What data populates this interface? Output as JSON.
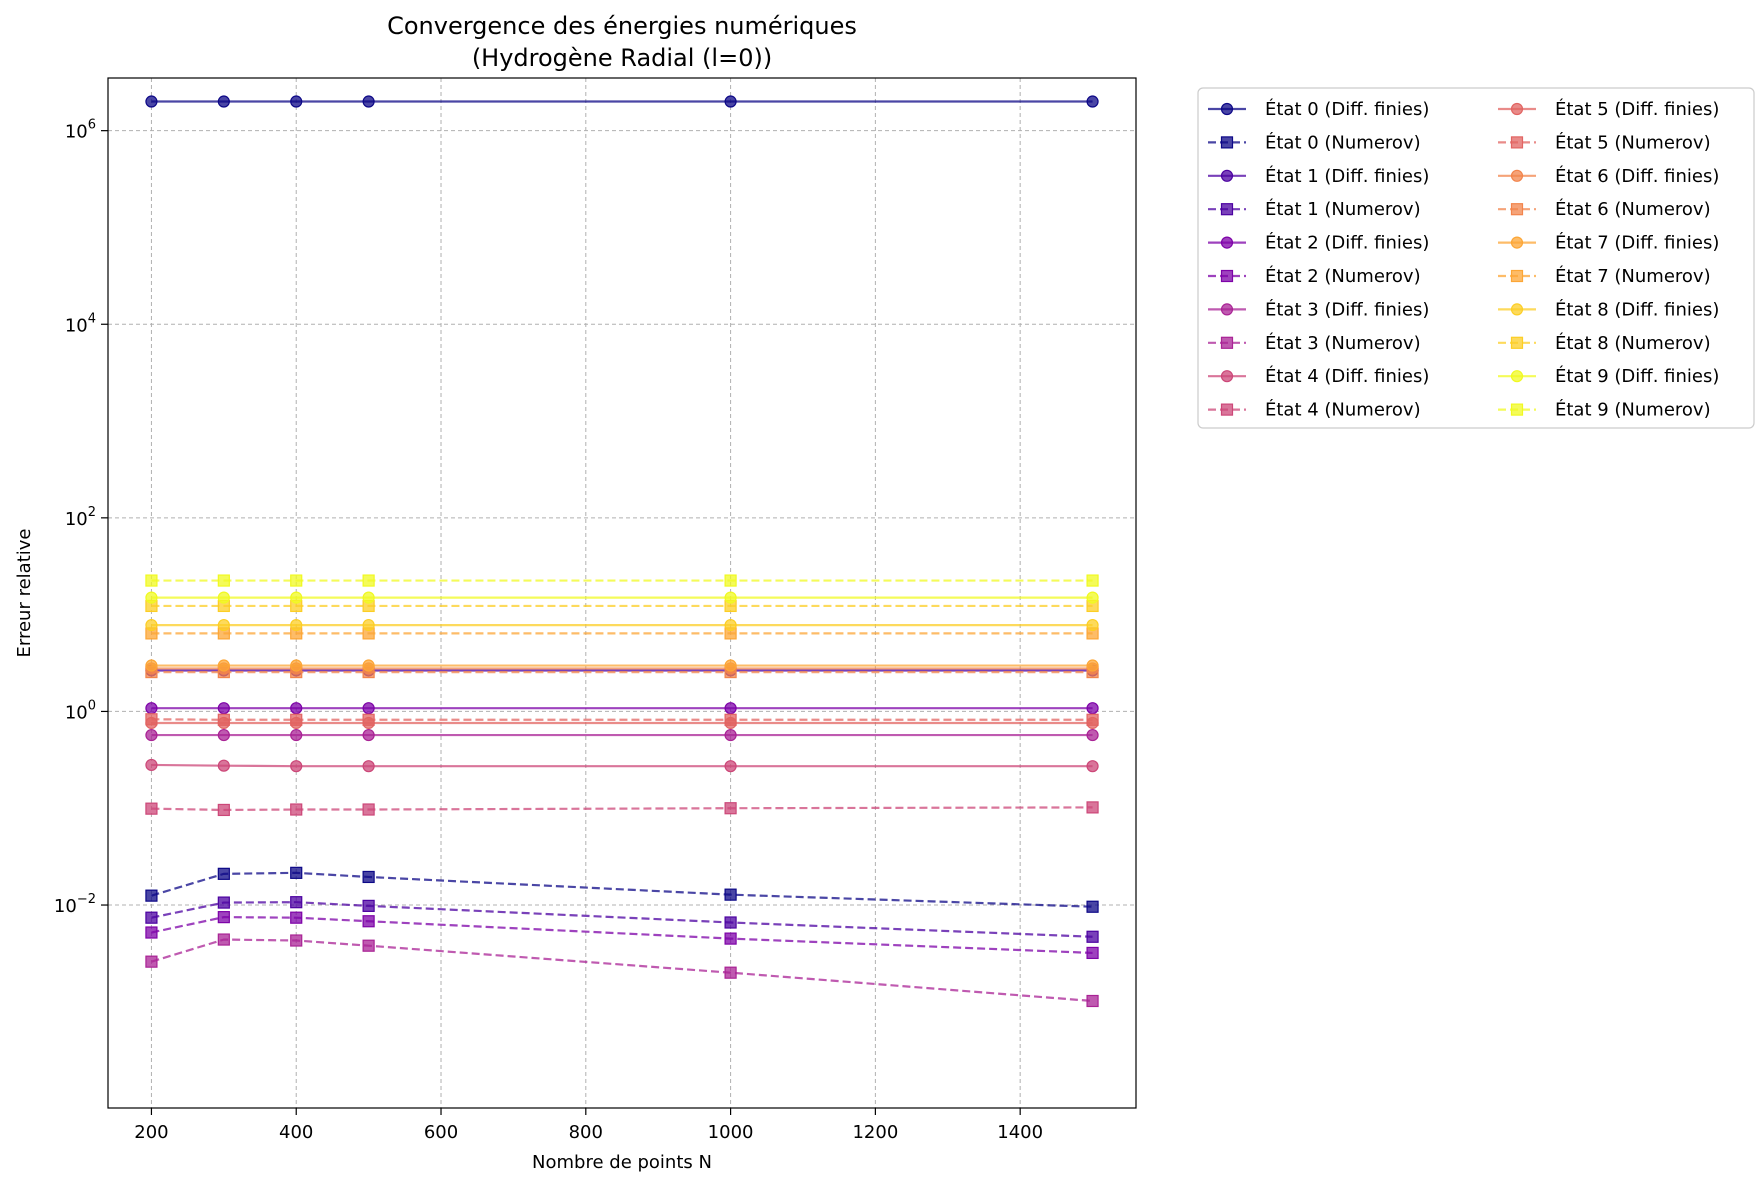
{
  "chart_data": {
    "type": "line",
    "title": "Convergence des énergies numériques",
    "subtitle": "(Hydrogène Radial (l=0))",
    "xlabel": "Nombre de points N",
    "ylabel": "Erreur relative",
    "x": [
      200,
      300,
      400,
      500,
      1000,
      1500
    ],
    "xlim": [
      140,
      1560
    ],
    "ylim": [
      8e-05,
      3500000
    ],
    "yscale": "log",
    "x_ticks": [
      200,
      400,
      600,
      800,
      1000,
      1200,
      1400
    ],
    "y_ticks": [
      {
        "value": 0.01,
        "base": "10",
        "exp": "−2"
      },
      {
        "value": 1,
        "base": "10",
        "exp": "0"
      },
      {
        "value": 100,
        "base": "10",
        "exp": "2"
      },
      {
        "value": 10000,
        "base": "10",
        "exp": "4"
      },
      {
        "value": 1000000,
        "base": "10",
        "exp": "6"
      }
    ],
    "grid": true,
    "legend_position": "outside-right",
    "series": [
      {
        "name": "État 0 (Diff. finies)",
        "color": "#0d0887",
        "style": "solid",
        "marker": "circle",
        "values": [
          2000000,
          2000000,
          2000000,
          2000000,
          2000000,
          2000000
        ]
      },
      {
        "name": "État 0 (Numerov)",
        "color": "#0d0887",
        "style": "dashed",
        "marker": "square",
        "values": [
          0.0125,
          0.021,
          0.0215,
          0.0195,
          0.0128,
          0.0096
        ]
      },
      {
        "name": "État 1 (Diff. finies)",
        "color": "#4c02a1",
        "style": "solid",
        "marker": "circle",
        "values": [
          2.65,
          2.65,
          2.65,
          2.65,
          2.65,
          2.65
        ]
      },
      {
        "name": "État 1 (Numerov)",
        "color": "#4c02a1",
        "style": "dashed",
        "marker": "square",
        "values": [
          0.0074,
          0.0106,
          0.0107,
          0.0098,
          0.0066,
          0.0047
        ]
      },
      {
        "name": "État 2 (Diff. finies)",
        "color": "#7e03a8",
        "style": "solid",
        "marker": "circle",
        "values": [
          1.08,
          1.08,
          1.08,
          1.08,
          1.08,
          1.08
        ]
      },
      {
        "name": "État 2 (Numerov)",
        "color": "#7e03a8",
        "style": "dashed",
        "marker": "square",
        "values": [
          0.0052,
          0.0075,
          0.0074,
          0.0068,
          0.0045,
          0.0032
        ]
      },
      {
        "name": "État 3 (Diff. finies)",
        "color": "#a92395",
        "style": "solid",
        "marker": "circle",
        "values": [
          0.57,
          0.57,
          0.57,
          0.57,
          0.57,
          0.57
        ]
      },
      {
        "name": "État 3 (Numerov)",
        "color": "#a92395",
        "style": "dashed",
        "marker": "square",
        "values": [
          0.0026,
          0.0044,
          0.0043,
          0.0038,
          0.002,
          0.00102
        ]
      },
      {
        "name": "État 4 (Diff. finies)",
        "color": "#cc4778",
        "style": "solid",
        "marker": "circle",
        "values": [
          0.28,
          0.275,
          0.272,
          0.272,
          0.272,
          0.272
        ]
      },
      {
        "name": "État 4 (Numerov)",
        "color": "#cc4778",
        "style": "dashed",
        "marker": "square",
        "values": [
          0.099,
          0.096,
          0.097,
          0.097,
          0.1,
          0.102
        ]
      },
      {
        "name": "État 5 (Diff. finies)",
        "color": "#e16462",
        "style": "solid",
        "marker": "circle",
        "values": [
          0.76,
          0.76,
          0.76,
          0.76,
          0.76,
          0.76
        ]
      },
      {
        "name": "État 5 (Numerov)",
        "color": "#e16462",
        "style": "dashed",
        "marker": "square",
        "values": [
          0.83,
          0.82,
          0.82,
          0.82,
          0.82,
          0.82
        ]
      },
      {
        "name": "État 6 (Diff. finies)",
        "color": "#f2844b",
        "style": "solid",
        "marker": "circle",
        "values": [
          2.78,
          2.78,
          2.78,
          2.78,
          2.78,
          2.78
        ]
      },
      {
        "name": "État 6 (Numerov)",
        "color": "#f2844b",
        "style": "dashed",
        "marker": "square",
        "values": [
          2.55,
          2.55,
          2.55,
          2.55,
          2.55,
          2.55
        ]
      },
      {
        "name": "État 7 (Diff. finies)",
        "color": "#fca636",
        "style": "solid",
        "marker": "circle",
        "values": [
          2.98,
          2.98,
          2.98,
          2.98,
          2.98,
          2.98
        ]
      },
      {
        "name": "État 7 (Numerov)",
        "color": "#fca636",
        "style": "dashed",
        "marker": "square",
        "values": [
          6.4,
          6.4,
          6.4,
          6.4,
          6.4,
          6.4
        ]
      },
      {
        "name": "État 8 (Diff. finies)",
        "color": "#fcce25",
        "style": "solid",
        "marker": "circle",
        "values": [
          7.8,
          7.8,
          7.8,
          7.8,
          7.8,
          7.8
        ]
      },
      {
        "name": "État 8 (Numerov)",
        "color": "#fcce25",
        "style": "dashed",
        "marker": "square",
        "values": [
          12.3,
          12.3,
          12.3,
          12.3,
          12.3,
          12.3
        ]
      },
      {
        "name": "État 9 (Diff. finies)",
        "color": "#f0f921",
        "style": "solid",
        "marker": "circle",
        "values": [
          15.0,
          15.0,
          15.0,
          15.0,
          15.0,
          15.0
        ]
      },
      {
        "name": "État 9 (Numerov)",
        "color": "#f0f921",
        "style": "dashed",
        "marker": "square",
        "values": [
          22.5,
          22.5,
          22.5,
          22.5,
          22.5,
          22.5
        ]
      }
    ]
  }
}
